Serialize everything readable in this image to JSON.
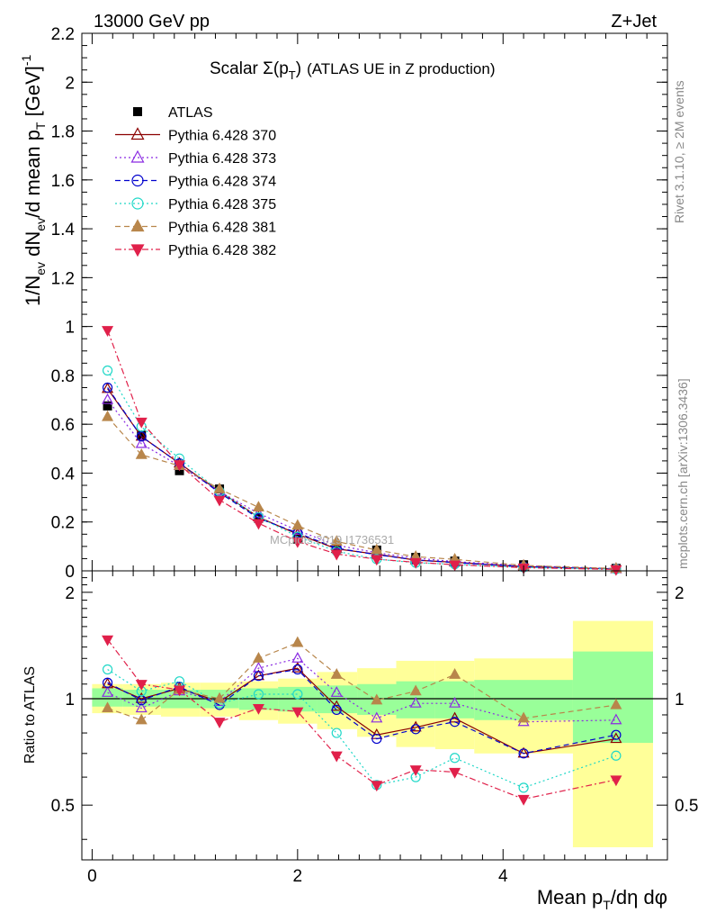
{
  "header": {
    "energy_label": "13000 GeV pp",
    "process_label": "Z+Jet"
  },
  "side": {
    "rivet_label": "Rivet 3.1.10, ≥ 2M events",
    "mcplots_label": "mcplots.cern.ch [arXiv:1306.3436]"
  },
  "watermark": "MCplots 2019  I1736531",
  "colors": {
    "band_inner": "#99ff99",
    "band_outer": "#ffff99",
    "ATLAS": "#000000",
    "p370": "#8b0000",
    "p373": "#8a2be2",
    "p374": "#0000cd",
    "p375": "#20d8c8",
    "p381": "#b8864b",
    "p382": "#e0204a"
  },
  "chart_data": [
    {
      "type": "line",
      "title": "Scalar Σ(pT) (ATLAS UE in Z production)",
      "xlabel": "Mean pT/dη dφ",
      "ylabel": "1/Nev dNev/d mean pT [GeV]^-1",
      "xlim": [
        -0.1,
        5.6
      ],
      "ylim": [
        0,
        2.2
      ],
      "grid": false,
      "legend_position": "top-left",
      "x": [
        0.15,
        0.48,
        0.85,
        1.24,
        1.62,
        2.0,
        2.38,
        2.77,
        3.15,
        3.53,
        4.2,
        5.1
      ],
      "series": [
        {
          "name": "ATLAS",
          "marker": "square",
          "values": [
            0.675,
            0.555,
            0.41,
            0.335,
            0.215,
            0.13,
            0.1,
            0.085,
            0.055,
            0.04,
            0.025,
            0.01
          ]
        },
        {
          "name": "Pythia 6.428 370",
          "marker": "triangle-open",
          "dash": "solid",
          "values": [
            0.745,
            0.55,
            0.44,
            0.325,
            0.22,
            0.15,
            0.09,
            0.068,
            0.044,
            0.035,
            0.017,
            0.0078
          ]
        },
        {
          "name": "Pythia 6.428 373",
          "marker": "triangle-open",
          "dash": "dotted",
          "values": [
            0.7,
            0.52,
            0.43,
            0.325,
            0.235,
            0.165,
            0.105,
            0.074,
            0.052,
            0.038,
            0.021,
            0.0088
          ]
        },
        {
          "name": "Pythia 6.428 374",
          "marker": "circle-open",
          "dash": "dashed",
          "values": [
            0.75,
            0.55,
            0.44,
            0.32,
            0.215,
            0.155,
            0.093,
            0.066,
            0.045,
            0.034,
            0.017,
            0.008
          ]
        },
        {
          "name": "Pythia 6.428 375",
          "marker": "circle-open",
          "dash": "dotted",
          "values": [
            0.82,
            0.59,
            0.46,
            0.325,
            0.22,
            0.14,
            0.08,
            0.048,
            0.033,
            0.027,
            0.014,
            0.0069
          ]
        },
        {
          "name": "Pythia 6.428 381",
          "marker": "triangle-filled",
          "dash": "dashed",
          "values": [
            0.63,
            0.475,
            0.43,
            0.335,
            0.26,
            0.185,
            0.12,
            0.085,
            0.058,
            0.047,
            0.022,
            0.0096
          ]
        },
        {
          "name": "Pythia 6.428 382",
          "marker": "triangle-down-filled",
          "dash": "dashdot",
          "values": [
            0.985,
            0.61,
            0.435,
            0.29,
            0.195,
            0.12,
            0.069,
            0.048,
            0.035,
            0.025,
            0.013,
            0.0059
          ]
        }
      ],
      "yticks": [
        "0",
        "0.2",
        "0.4",
        "0.6",
        "0.8",
        "1",
        "1.2",
        "1.4",
        "1.6",
        "1.8",
        "2",
        "2.2"
      ]
    },
    {
      "type": "line",
      "title": "",
      "xlabel": "Mean pT/dη dφ",
      "ylabel": "Ratio to ATLAS",
      "xlim": [
        -0.1,
        5.6
      ],
      "ylim": [
        0.35,
        2.3
      ],
      "reference_line": 1,
      "x": [
        0.15,
        0.48,
        0.85,
        1.24,
        1.62,
        2.0,
        2.38,
        2.77,
        3.15,
        3.53,
        4.2,
        5.1
      ],
      "bands": [
        {
          "x0": 0.0,
          "x1": 0.3,
          "inner": [
            0.95,
            1.07
          ],
          "outer": [
            0.91,
            1.1
          ]
        },
        {
          "x0": 0.3,
          "x1": 0.67,
          "inner": [
            0.95,
            1.06
          ],
          "outer": [
            0.9,
            1.1
          ]
        },
        {
          "x0": 0.67,
          "x1": 1.05,
          "inner": [
            0.94,
            1.06
          ],
          "outer": [
            0.89,
            1.11
          ]
        },
        {
          "x0": 1.05,
          "x1": 1.43,
          "inner": [
            0.94,
            1.06
          ],
          "outer": [
            0.89,
            1.11
          ]
        },
        {
          "x0": 1.43,
          "x1": 1.81,
          "inner": [
            0.93,
            1.07
          ],
          "outer": [
            0.87,
            1.12
          ]
        },
        {
          "x0": 1.81,
          "x1": 2.19,
          "inner": [
            0.92,
            1.08
          ],
          "outer": [
            0.85,
            1.14
          ]
        },
        {
          "x0": 2.19,
          "x1": 2.58,
          "inner": [
            0.91,
            1.09
          ],
          "outer": [
            0.82,
            1.19
          ]
        },
        {
          "x0": 2.58,
          "x1": 2.96,
          "inner": [
            0.9,
            1.1
          ],
          "outer": [
            0.78,
            1.22
          ]
        },
        {
          "x0": 2.96,
          "x1": 3.34,
          "inner": [
            0.88,
            1.12
          ],
          "outer": [
            0.73,
            1.28
          ]
        },
        {
          "x0": 3.34,
          "x1": 3.72,
          "inner": [
            0.88,
            1.12
          ],
          "outer": [
            0.72,
            1.28
          ]
        },
        {
          "x0": 3.72,
          "x1": 4.68,
          "inner": [
            0.87,
            1.13
          ],
          "outer": [
            0.7,
            1.3
          ]
        },
        {
          "x0": 4.68,
          "x1": 5.46,
          "inner": [
            0.75,
            1.36
          ],
          "outer": [
            0.38,
            1.66
          ]
        }
      ],
      "series": [
        {
          "name": "Pythia 6.428 370",
          "values": [
            1.1,
            1.0,
            1.07,
            0.98,
            1.16,
            1.22,
            0.95,
            0.79,
            0.83,
            0.88,
            0.7,
            0.77
          ]
        },
        {
          "name": "Pythia 6.428 373",
          "values": [
            1.04,
            0.94,
            1.05,
            0.98,
            1.22,
            1.3,
            1.04,
            0.88,
            0.97,
            0.97,
            0.86,
            0.87
          ]
        },
        {
          "name": "Pythia 6.428 374",
          "values": [
            1.11,
            0.99,
            1.08,
            0.96,
            1.16,
            1.21,
            0.93,
            0.77,
            0.82,
            0.86,
            0.7,
            0.79
          ]
        },
        {
          "name": "Pythia 6.428 375",
          "values": [
            1.21,
            1.05,
            1.12,
            0.97,
            1.03,
            1.03,
            0.8,
            0.57,
            0.6,
            0.68,
            0.56,
            0.69
          ]
        },
        {
          "name": "Pythia 6.428 381",
          "values": [
            0.94,
            0.87,
            1.06,
            1.0,
            1.3,
            1.44,
            1.17,
            0.99,
            1.05,
            1.17,
            0.88,
            0.96
          ]
        },
        {
          "name": "Pythia 6.428 382",
          "values": [
            1.47,
            1.1,
            1.06,
            0.86,
            0.94,
            0.92,
            0.69,
            0.57,
            0.63,
            0.62,
            0.52,
            0.59
          ]
        }
      ],
      "yticks_left": [
        "0.5",
        "1",
        "2"
      ],
      "yticks_right": [
        "0.5",
        "1",
        "2"
      ],
      "xticks": [
        "0",
        "2",
        "4"
      ]
    }
  ]
}
